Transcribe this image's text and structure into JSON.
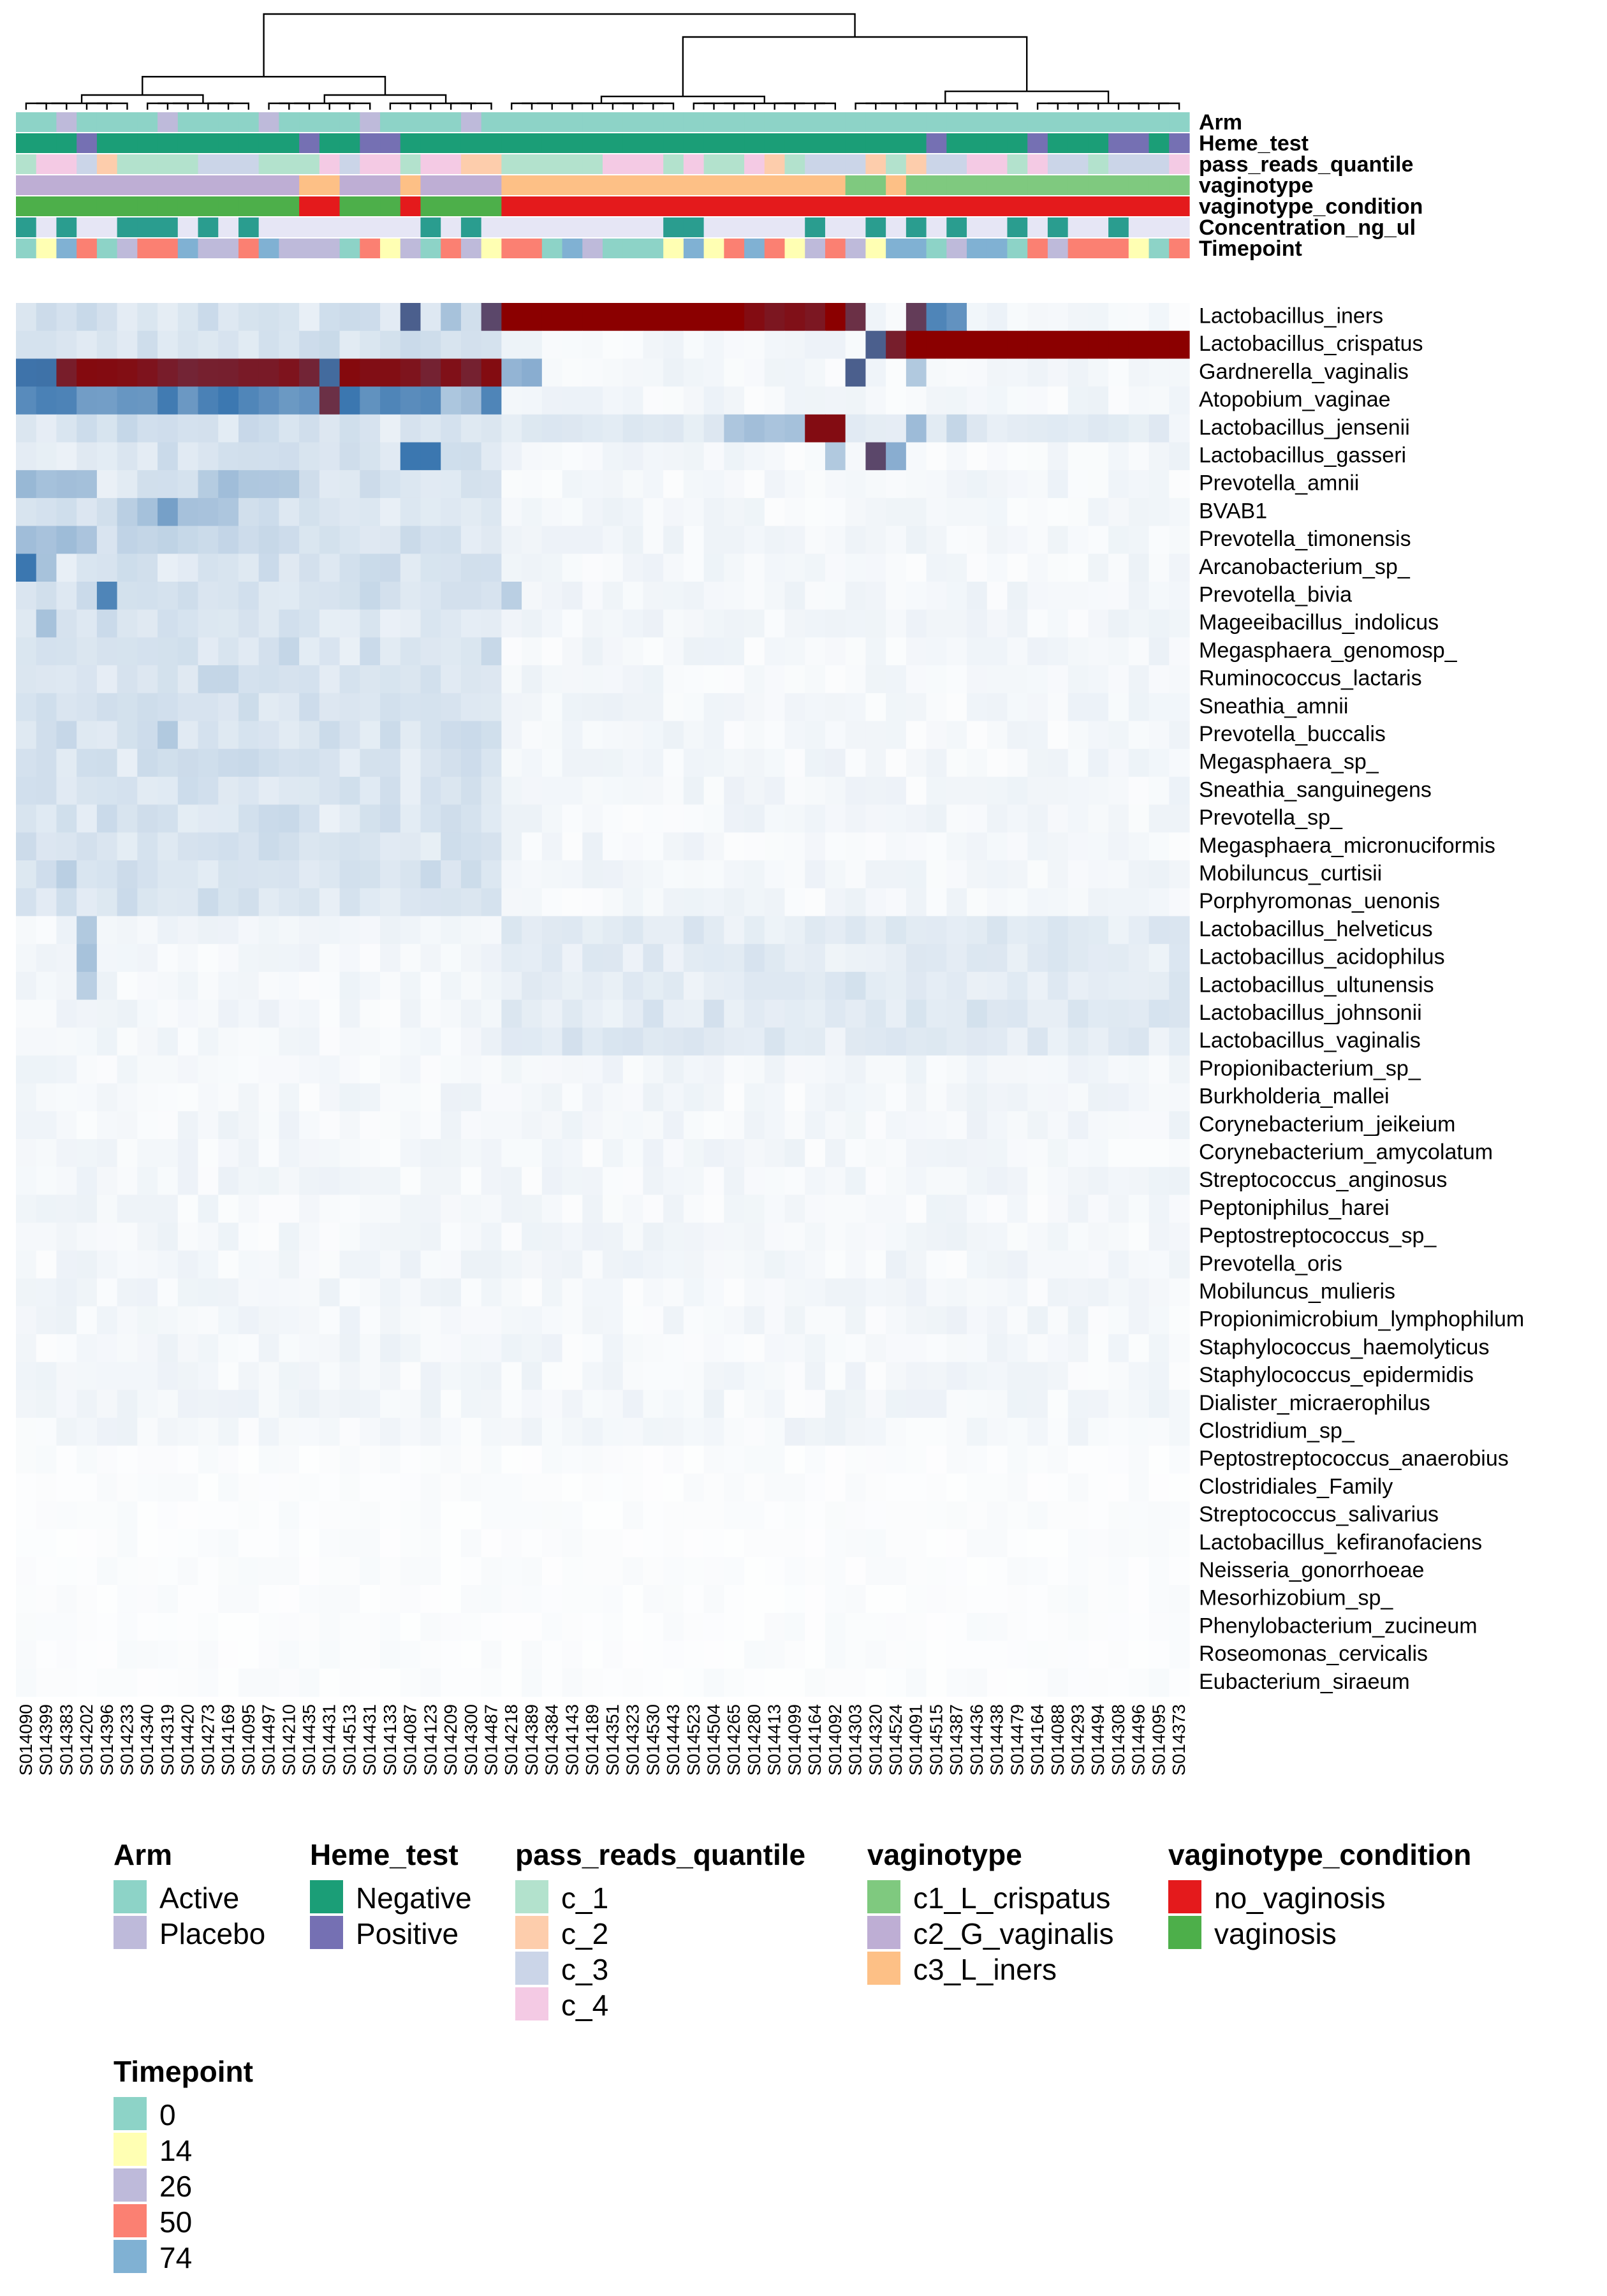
{
  "chart_data": {
    "type": "heatmap",
    "title": "",
    "colormap": {
      "low": "#ffffff",
      "mid": "#3b77b0",
      "high": "#8b0000"
    },
    "annotation_tracks": [
      "Arm",
      "Heme_test",
      "pass_reads_quantile",
      "vaginotype",
      "vaginotype_condition",
      "Concentration_ng_ul",
      "Timepoint"
    ],
    "samples": [
      "S014090",
      "S014399",
      "S014383",
      "S014202",
      "S014396",
      "S014233",
      "S014340",
      "S014319",
      "S014420",
      "S014273",
      "S014169",
      "S014095",
      "S014497",
      "S014210",
      "S014435",
      "S014431",
      "S014513",
      "S014431",
      "S014133",
      "S014087",
      "S014123",
      "S014209",
      "S014300",
      "S014487",
      "S014218",
      "S014389",
      "S014384",
      "S014143",
      "S014189",
      "S014351",
      "S014323",
      "S014530",
      "S014443",
      "S014523",
      "S014504",
      "S014265",
      "S014280",
      "S014413",
      "S014099",
      "S014164",
      "S014092",
      "S014303",
      "S014320",
      "S014524",
      "S014091",
      "S014515",
      "S014387",
      "S014436",
      "S014438",
      "S014479",
      "S014164",
      "S014088",
      "S014293",
      "S014494",
      "S014308",
      "S014496",
      "S014095",
      "S014373"
    ],
    "taxa": [
      "Lactobacillus_iners",
      "Lactobacillus_crispatus",
      "Gardnerella_vaginalis",
      "Atopobium_vaginae",
      "Lactobacillus_jensenii",
      "Lactobacillus_gasseri",
      "Prevotella_amnii",
      "BVAB1",
      "Prevotella_timonensis",
      "Arcanobacterium_sp_",
      "Prevotella_bivia",
      "Mageeibacillus_indolicus",
      "Megasphaera_genomosp_",
      "Ruminococcus_lactaris",
      "Sneathia_amnii",
      "Prevotella_buccalis",
      "Megasphaera_sp_",
      "Sneathia_sanguinegens",
      "Prevotella_sp_",
      "Megasphaera_micronuciformis",
      "Mobiluncus_curtisii",
      "Porphyromonas_uenonis",
      "Lactobacillus_helveticus",
      "Lactobacillus_acidophilus",
      "Lactobacillus_ultunensis",
      "Lactobacillus_johnsonii",
      "Lactobacillus_vaginalis",
      "Propionibacterium_sp_",
      "Burkholderia_mallei",
      "Corynebacterium_jeikeium",
      "Corynebacterium_amycolatum",
      "Streptococcus_anginosus",
      "Peptoniphilus_harei",
      "Peptostreptococcus_sp_",
      "Prevotella_oris",
      "Mobiluncus_mulieris",
      "Propionimicrobium_lymphophilum",
      "Staphylococcus_haemolyticus",
      "Staphylococcus_epidermidis",
      "Dialister_micraerophilus",
      "Clostridium_sp_",
      "Peptostreptococcus_anaerobius",
      "Clostridiales_Family",
      "Streptococcus_salivarius",
      "Lactobacillus_kefiranofaciens",
      "Neisseria_gonorrhoeae",
      "Mesorhizobium_sp_",
      "Phenylobacterium_zucineum",
      "Roseomonas_cervicalis",
      "Eubacterium_siraeum"
    ],
    "intensity_scale": "0 = white, 1 = blue, 2 = dark red (approximate relative abundance)",
    "key_blocks": [
      {
        "taxon": "Lactobacillus_iners",
        "samples": "S014218–S014413",
        "level": 2
      },
      {
        "taxon": "Lactobacillus_crispatus",
        "samples": "S014524–S014373",
        "level": 2
      },
      {
        "taxon": "Gardnerella_vaginalis",
        "samples": "S014383–S014487",
        "level": 1.8
      },
      {
        "taxon": "Atopobium_vaginae",
        "samples": "S014090–S014209",
        "level": 0.9
      },
      {
        "taxon": "Lactobacillus_jensenii",
        "samples": "S014092–S014164",
        "level": 1.9
      }
    ],
    "legend_placement": "bottom"
  },
  "legends": {
    "arm": {
      "title": "Arm",
      "items": [
        {
          "label": "Active",
          "color": "#8dd3c7"
        },
        {
          "label": "Placebo",
          "color": "#bebada"
        }
      ]
    },
    "heme": {
      "title": "Heme_test",
      "items": [
        {
          "label": "Negative",
          "color": "#1b9e77"
        },
        {
          "label": "Positive",
          "color": "#7570b3"
        }
      ]
    },
    "reads": {
      "title": "pass_reads_quantile",
      "items": [
        {
          "label": "c_1",
          "color": "#b3e2cd"
        },
        {
          "label": "c_2",
          "color": "#fdcdac"
        },
        {
          "label": "c_3",
          "color": "#cbd5e8"
        },
        {
          "label": "c_4",
          "color": "#f4cae4"
        }
      ]
    },
    "vtype": {
      "title": "vaginotype",
      "items": [
        {
          "label": "c1_L_crispatus",
          "color": "#7fc97f"
        },
        {
          "label": "c2_G_vaginalis",
          "color": "#beaed4"
        },
        {
          "label": "c3_L_iners",
          "color": "#fdc086"
        }
      ]
    },
    "vcond": {
      "title": "vaginotype_condition",
      "items": [
        {
          "label": "no_vaginosis",
          "color": "#e41a1c"
        },
        {
          "label": "vaginosis",
          "color": "#4daf4a"
        }
      ]
    },
    "tp": {
      "title": "Timepoint",
      "items": [
        {
          "label": "0",
          "color": "#8dd3c7"
        },
        {
          "label": "14",
          "color": "#ffffb3"
        },
        {
          "label": "26",
          "color": "#bebada"
        },
        {
          "label": "50",
          "color": "#fb8072"
        },
        {
          "label": "74",
          "color": "#80b1d3"
        }
      ]
    }
  },
  "colors": {
    "concentration_high": "#2a9d8f",
    "concentration_low": "#e6e6f5"
  }
}
